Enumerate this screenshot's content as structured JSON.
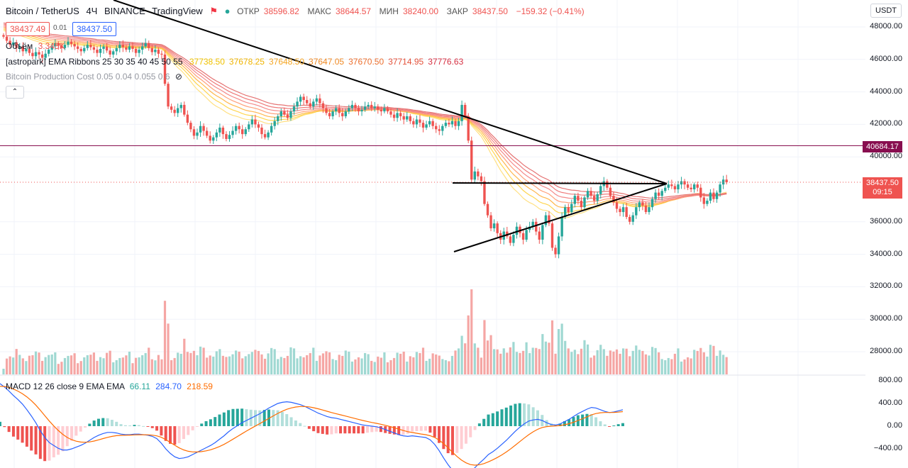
{
  "header": {
    "symbol": "Bitcoin / TetherUS",
    "interval": "4Ч",
    "exchange": "BINANCE",
    "source": "TradingView",
    "open_label": "ОТКР",
    "open": "38596.82",
    "high_label": "МАКС",
    "high": "38644.57",
    "low_label": "МИН",
    "low": "38240.00",
    "close_label": "ЗАКР",
    "close": "38437.50",
    "change": "−159.32 (−0.41%)",
    "bid": "38437.49",
    "spread": "0.01",
    "ask": "38437.50"
  },
  "indicators": {
    "volume_label": "Объём",
    "volume_value": "3.345K",
    "ema_label": "[astropark] EMA Ribbons 25 30 35 40 45 50 55",
    "ema_values": [
      "37738.50",
      "37678.25",
      "37648.50",
      "37647.05",
      "37670.50",
      "37714.95",
      "37776.63"
    ],
    "ema_value_colors": [
      "#f0c200",
      "#f0b400",
      "#f5a623",
      "#f08a24",
      "#ec6f2d",
      "#e4523a",
      "#d63042"
    ],
    "production_cost_label": "Bitcoin Production Cost 0.05 0.04 0.055 0.6",
    "macd_label": "MACD 12 26 close 9 EMA EMA",
    "macd_hist": "66.11",
    "macd_line": "284.70",
    "macd_signal": "218.59"
  },
  "colors": {
    "up": "#26a69a",
    "down": "#ef5350",
    "macd_line": "#2962ff",
    "signal_line": "#ff6d00",
    "level_line": "#880e4f"
  },
  "price_axis": {
    "currency": "USDT",
    "ticks": [
      "48000.00",
      "46000.00",
      "44000.00",
      "42000.00",
      "40000.00",
      "36000.00",
      "34000.00",
      "32000.00",
      "30000.00",
      "28000.00"
    ],
    "level_tag": "40684.17",
    "last_price_tag": "38437.50",
    "countdown": "09:15"
  },
  "macd_axis": {
    "ticks": [
      "800.00",
      "400.00",
      "0.00",
      "−400.00"
    ]
  },
  "chart_data": {
    "type": "candlestick",
    "level_line": 40684.17,
    "last_price": 38437.5,
    "y_range": [
      26800,
      48500
    ],
    "closes": [
      47400,
      47150,
      46900,
      47050,
      46700,
      46800,
      46500,
      46650,
      46400,
      46200,
      46450,
      46300,
      46100,
      46350,
      46600,
      46800,
      47000,
      46850,
      46700,
      46900,
      47100,
      46950,
      46800,
      46650,
      46500,
      46700,
      46900,
      46750,
      46600,
      46400,
      46650,
      46800,
      46550,
      46300,
      46500,
      46700,
      46900,
      46750,
      46600,
      46800,
      46650,
      46400,
      46600,
      46800,
      47000,
      46700,
      46450,
      46600,
      46350,
      46300,
      44500,
      43100,
      42900,
      42700,
      43000,
      43200,
      42600,
      42100,
      41700,
      41300,
      41500,
      41900,
      41600,
      41300,
      41000,
      41200,
      41500,
      41800,
      41400,
      41100,
      41350,
      41600,
      41900,
      41700,
      41400,
      41700,
      42000,
      42300,
      42000,
      41800,
      41400,
      41200,
      41500,
      41900,
      42200,
      42500,
      42800,
      42600,
      42400,
      42800,
      43100,
      43400,
      43700,
      43500,
      43300,
      43100,
      43400,
      43600,
      43300,
      43000,
      42700,
      42500,
      42800,
      43000,
      42700,
      42500,
      42800,
      43000,
      43200,
      43000,
      42800,
      42900,
      43100,
      43200,
      43000,
      43100,
      42900,
      42800,
      43000,
      42800,
      42600,
      42400,
      42700,
      42500,
      42300,
      42500,
      42200,
      42000,
      42300,
      42100,
      41800,
      42000,
      42200,
      41900,
      41700,
      41600,
      41900,
      42100,
      42000,
      42200,
      41900,
      42200,
      43200,
      42500,
      41000,
      38600,
      39100,
      38800,
      38500,
      37100,
      36400,
      35600,
      35900,
      35300,
      34900,
      35400,
      35100,
      34700,
      35200,
      35700,
      35300,
      34900,
      35500,
      35700,
      36000,
      35400,
      34900,
      35800,
      36400,
      35900,
      34400,
      34000,
      35100,
      36300,
      36900,
      36600,
      37100,
      37600,
      37300,
      36900,
      37500,
      37900,
      37600,
      37300,
      37700,
      38200,
      38500,
      38100,
      37600,
      37200,
      36800,
      36600,
      36900,
      36300,
      36000,
      36400,
      36900,
      37200,
      37000,
      36600,
      36900,
      37400,
      37800,
      37600,
      37900,
      38100,
      38300,
      38200,
      38000,
      38300,
      38500,
      38300,
      38100,
      38000,
      38300,
      38100,
      37500,
      37100,
      37300,
      37800,
      37400,
      37800,
      38300,
      38600,
      38437.5
    ],
    "macd": [
      750,
      690,
      620,
      540,
      470,
      390,
      290,
      180,
      60,
      -80,
      -200,
      -290,
      -340,
      -390,
      -420,
      -420,
      -400,
      -370,
      -340,
      -300,
      -250,
      -200,
      -160,
      -130,
      -110,
      -110,
      -120,
      -140,
      -150,
      -150,
      -140,
      -140,
      -150,
      -160,
      -180,
      -220,
      -300,
      -400,
      -480,
      -540,
      -570,
      -560,
      -540,
      -500,
      -460,
      -420,
      -380,
      -340,
      -290,
      -230,
      -170,
      -100,
      -40,
      10,
      60,
      100,
      140,
      180,
      220,
      270,
      320,
      360,
      400,
      420,
      430,
      420,
      400,
      380,
      350,
      310,
      270,
      230,
      200,
      170,
      150,
      140,
      120,
      100,
      80,
      60,
      40,
      20,
      10,
      0,
      -10,
      -30,
      -60,
      -90,
      -120,
      -150,
      -170,
      -180,
      -170,
      -180,
      -190,
      -200,
      -240,
      -320,
      -430,
      -560,
      -680,
      -780,
      -830,
      -850,
      -840,
      -800,
      -730,
      -650,
      -580,
      -500,
      -450,
      -390,
      -320,
      -250,
      -170,
      -90,
      -20,
      40,
      90,
      110,
      120,
      100,
      60,
      30,
      20,
      40,
      80,
      120,
      170,
      220,
      260,
      300,
      330,
      320,
      290,
      260,
      240,
      250,
      270,
      290
    ]
  }
}
